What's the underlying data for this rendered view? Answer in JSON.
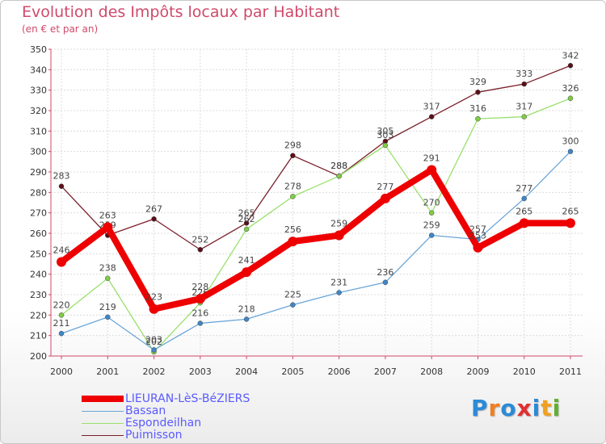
{
  "chart_data": {
    "type": "line",
    "title": "Evolution des Impôts locaux par Habitant",
    "subtitle": "(en € et par an)",
    "categories": [
      "2000",
      "2001",
      "2002",
      "2003",
      "2004",
      "2005",
      "2006",
      "2007",
      "2008",
      "2009",
      "2010",
      "2011"
    ],
    "ylim": [
      200,
      350
    ],
    "yticks": [
      200,
      210,
      220,
      230,
      240,
      250,
      260,
      270,
      280,
      290,
      300,
      310,
      320,
      330,
      340,
      350
    ],
    "grid": true,
    "series": [
      {
        "name": "Puimisson",
        "color": "#7a1f2b",
        "marker": "#5a0f18",
        "width": 1.3,
        "values": [
          283,
          259,
          267,
          252,
          265,
          298,
          288,
          305,
          317,
          329,
          333,
          342
        ]
      },
      {
        "name": "Espondeilhan",
        "color": "#99e06a",
        "marker": "#7fcc44",
        "width": 1.3,
        "values": [
          220,
          238,
          202,
          226,
          262,
          278,
          288,
          303,
          270,
          316,
          317,
          326
        ]
      },
      {
        "name": "Bassan",
        "color": "#6aa6d8",
        "marker": "#3f86c8",
        "width": 1.3,
        "values": [
          211,
          219,
          203,
          216,
          218,
          225,
          231,
          236,
          259,
          257,
          277,
          300
        ]
      },
      {
        "name": "LIEURAN-LèS-BéZIERS",
        "color": "#ee0000",
        "marker": "#ee0000",
        "width": 8,
        "values": [
          246,
          263,
          223,
          228,
          241,
          256,
          259,
          277,
          291,
          253,
          265,
          265
        ]
      }
    ],
    "legend": [
      "LIEURAN-LèS-BéZIERS",
      "Bassan",
      "Espondeilhan",
      "Puimisson"
    ],
    "legend_position": "bottom-left"
  },
  "logo": {
    "letters": [
      "P",
      "r",
      "o",
      "x",
      "i",
      "t",
      "i"
    ],
    "colors": [
      "#2a8ad8",
      "#f08020",
      "#2a8ad8",
      "#e03030",
      "#2a8ad8",
      "#f0a020",
      "#60b030"
    ]
  }
}
